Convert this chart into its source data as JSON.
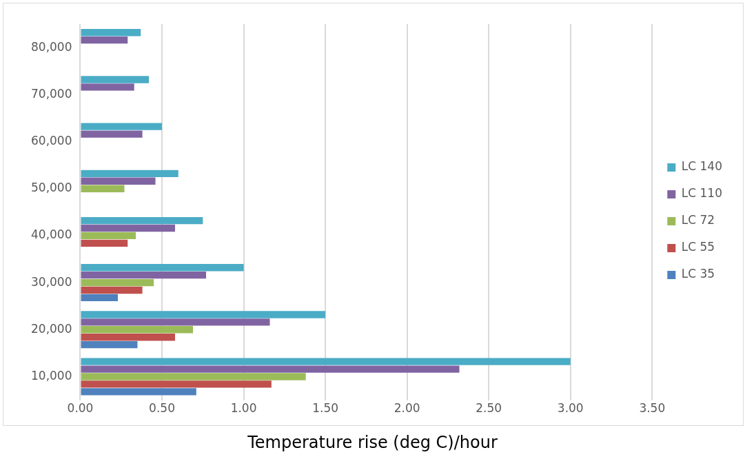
{
  "chart_data": {
    "type": "bar",
    "orientation": "horizontal",
    "xlabel": "Temperature rise (deg C)/hour",
    "categories": [
      "80,000",
      "70,000",
      "60,000",
      "50,000",
      "40,000",
      "30,000",
      "20,000",
      "10,000"
    ],
    "series": [
      {
        "name": "LC 140",
        "color": "#4bacc6",
        "values": [
          0.37,
          0.42,
          0.5,
          0.6,
          0.75,
          1.0,
          1.5,
          3.0
        ]
      },
      {
        "name": "LC 110",
        "color": "#8064a2",
        "values": [
          0.29,
          0.33,
          0.38,
          0.46,
          0.58,
          0.77,
          1.16,
          2.32
        ]
      },
      {
        "name": "LC 72",
        "color": "#9bbb59",
        "values": [
          null,
          null,
          null,
          0.27,
          0.34,
          0.45,
          0.69,
          1.38
        ]
      },
      {
        "name": "LC 55",
        "color": "#c0504d",
        "values": [
          null,
          null,
          null,
          null,
          0.29,
          0.38,
          0.58,
          1.17
        ]
      },
      {
        "name": "LC 35",
        "color": "#4f81bd",
        "values": [
          null,
          null,
          null,
          null,
          null,
          0.23,
          0.35,
          0.71
        ]
      }
    ],
    "xlim": [
      0,
      3.5
    ],
    "xticks": [
      {
        "value": 0,
        "label": "0.00"
      },
      {
        "value": 0.5,
        "label": "0.50"
      },
      {
        "value": 1,
        "label": "1.00"
      },
      {
        "value": 1.5,
        "label": "1.50"
      },
      {
        "value": 2,
        "label": "2.00"
      },
      {
        "value": 2.5,
        "label": "2.50"
      },
      {
        "value": 3,
        "label": "3.00"
      },
      {
        "value": 3.5,
        "label": "3.50"
      }
    ],
    "grid": "x",
    "legend": "right"
  }
}
